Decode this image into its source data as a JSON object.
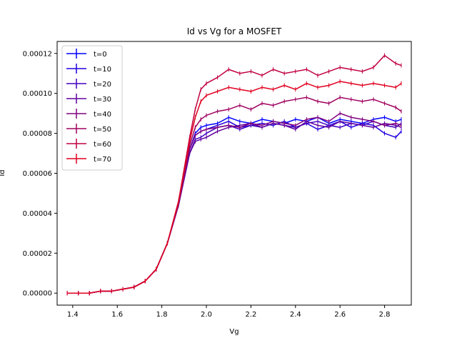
{
  "chart_data": {
    "type": "line",
    "title": "Id vs Vg for a MOSFET",
    "xlabel": "Vg",
    "ylabel": "Id",
    "xlim": [
      1.33,
      2.92
    ],
    "ylim": [
      -6e-06,
      0.000126
    ],
    "xticks": [
      1.4,
      1.6,
      1.8,
      2.0,
      2.2,
      2.4,
      2.6,
      2.8
    ],
    "xtick_labels": [
      "1.4",
      "1.6",
      "1.8",
      "2.0",
      "2.2",
      "2.4",
      "2.6",
      "2.8"
    ],
    "yticks": [
      0,
      2e-05,
      4e-05,
      6e-05,
      8e-05,
      0.0001,
      0.00012
    ],
    "ytick_labels": [
      "0.00000",
      "0.00002",
      "0.00004",
      "0.00006",
      "0.00008",
      "0.00010",
      "0.00012"
    ],
    "legend_position": "top-left",
    "grid": false,
    "x": [
      1.375,
      1.425,
      1.475,
      1.525,
      1.575,
      1.625,
      1.675,
      1.725,
      1.775,
      1.825,
      1.875,
      1.925,
      1.95,
      1.975,
      2.0,
      2.05,
      2.1,
      2.15,
      2.2,
      2.25,
      2.3,
      2.35,
      2.4,
      2.45,
      2.5,
      2.55,
      2.6,
      2.65,
      2.7,
      2.75,
      2.8,
      2.85,
      2.875
    ],
    "series": [
      {
        "name": "t=0",
        "color": "#0000ff",
        "values": [
          0,
          0,
          0,
          1e-06,
          1e-06,
          2e-06,
          3e-06,
          6e-06,
          1.2e-05,
          2.5e-05,
          4.5e-05,
          7.2e-05,
          8e-05,
          8.3e-05,
          8.4e-05,
          8.5e-05,
          8.8e-05,
          8.6e-05,
          8.5e-05,
          8.7e-05,
          8.6e-05,
          8.5e-05,
          8.7e-05,
          8.6e-05,
          8.8e-05,
          8.5e-05,
          8.7e-05,
          8.6e-05,
          8.5e-05,
          8.7e-05,
          8.8e-05,
          8.6e-05,
          8.7e-05
        ]
      },
      {
        "name": "t=10",
        "color": "#2000df",
        "values": [
          0,
          0,
          0,
          1e-06,
          1e-06,
          2e-06,
          3e-06,
          6e-06,
          1.2e-05,
          2.5e-05,
          4.5e-05,
          7.2e-05,
          7.9e-05,
          8.1e-05,
          8.2e-05,
          8.4e-05,
          8.6e-05,
          8.3e-05,
          8.4e-05,
          8.5e-05,
          8.4e-05,
          8.6e-05,
          8.3e-05,
          8.5e-05,
          8.2e-05,
          8.4e-05,
          8.6e-05,
          8.3e-05,
          8.5e-05,
          8.4e-05,
          8e-05,
          7.8e-05,
          8.1e-05
        ]
      },
      {
        "name": "t=20",
        "color": "#4000bf",
        "values": [
          0,
          0,
          0,
          1e-06,
          1e-06,
          2e-06,
          3e-06,
          6e-06,
          1.2e-05,
          2.5e-05,
          4.4e-05,
          7e-05,
          7.7e-05,
          7.8e-05,
          8e-05,
          8.3e-05,
          8.4e-05,
          8.2e-05,
          8.4e-05,
          8.3e-05,
          8.5e-05,
          8.4e-05,
          8.3e-05,
          8.5e-05,
          8.6e-05,
          8.4e-05,
          8.3e-05,
          8.5e-05,
          8.4e-05,
          8.6e-05,
          8.4e-05,
          8.3e-05,
          8.5e-05
        ]
      },
      {
        "name": "t=30",
        "color": "#60009f",
        "values": [
          0,
          0,
          0,
          1e-06,
          1e-06,
          2e-06,
          3e-06,
          6e-06,
          1.2e-05,
          2.5e-05,
          4.4e-05,
          7e-05,
          7.6e-05,
          7.7e-05,
          7.8e-05,
          8.1e-05,
          8.3e-05,
          8.4e-05,
          8.5e-05,
          8.3e-05,
          8.5e-05,
          8.4e-05,
          8.2e-05,
          8.6e-05,
          8.4e-05,
          8.3e-05,
          8.6e-05,
          8.5e-05,
          8.4e-05,
          8.3e-05,
          8.5e-05,
          8.4e-05,
          8.3e-05
        ]
      },
      {
        "name": "t=40",
        "color": "#80007f",
        "values": [
          0,
          0,
          0,
          1e-06,
          1e-06,
          2e-06,
          3e-06,
          6e-06,
          1.2e-05,
          2.5e-05,
          4.4e-05,
          7.2e-05,
          7.9e-05,
          8.1e-05,
          8.2e-05,
          8.3e-05,
          8.4e-05,
          8.3e-05,
          8.5e-05,
          8.4e-05,
          8.6e-05,
          8.5e-05,
          8.4e-05,
          8.7e-05,
          8.8e-05,
          8.6e-05,
          9e-05,
          8.8e-05,
          8.7e-05,
          8.6e-05,
          8.4e-05,
          8.5e-05,
          8.4e-05
        ]
      },
      {
        "name": "t=50",
        "color": "#a0005f",
        "values": [
          0,
          0,
          0,
          1e-06,
          1e-06,
          2e-06,
          3e-06,
          6e-06,
          1.2e-05,
          2.5e-05,
          4.5e-05,
          7.4e-05,
          8.3e-05,
          8.7e-05,
          8.9e-05,
          9.1e-05,
          9.2e-05,
          9.4e-05,
          9.2e-05,
          9.5e-05,
          9.4e-05,
          9.6e-05,
          9.7e-05,
          9.8e-05,
          9.6e-05,
          9.5e-05,
          9.8e-05,
          9.7e-05,
          9.6e-05,
          9.7e-05,
          9.5e-05,
          9.3e-05,
          9.1e-05
        ]
      },
      {
        "name": "t=60",
        "color": "#c0003f",
        "values": [
          0,
          0,
          0,
          1e-06,
          1e-06,
          2e-06,
          3e-06,
          6e-06,
          1.2e-05,
          2.5e-05,
          4.6e-05,
          7.8e-05,
          9.2e-05,
          0.000102,
          0.000105,
          0.000108,
          0.000112,
          0.00011,
          0.000111,
          0.000109,
          0.000112,
          0.00011,
          0.000111,
          0.000112,
          0.000109,
          0.000111,
          0.000113,
          0.000112,
          0.000111,
          0.000113,
          0.000119,
          0.000115,
          0.000114
        ]
      },
      {
        "name": "t=70",
        "color": "#e0001f",
        "values": [
          0,
          0,
          0,
          1e-06,
          1e-06,
          2e-06,
          3e-06,
          6e-06,
          1.2e-05,
          2.5e-05,
          4.6e-05,
          7.6e-05,
          8.8e-05,
          9.6e-05,
          9.9e-05,
          0.000101,
          0.000103,
          0.000102,
          0.000101,
          0.000103,
          0.000102,
          0.000104,
          0.000102,
          0.000105,
          0.000103,
          0.000104,
          0.000106,
          0.000105,
          0.000104,
          0.000105,
          0.000104,
          0.000103,
          0.000105
        ]
      }
    ]
  }
}
